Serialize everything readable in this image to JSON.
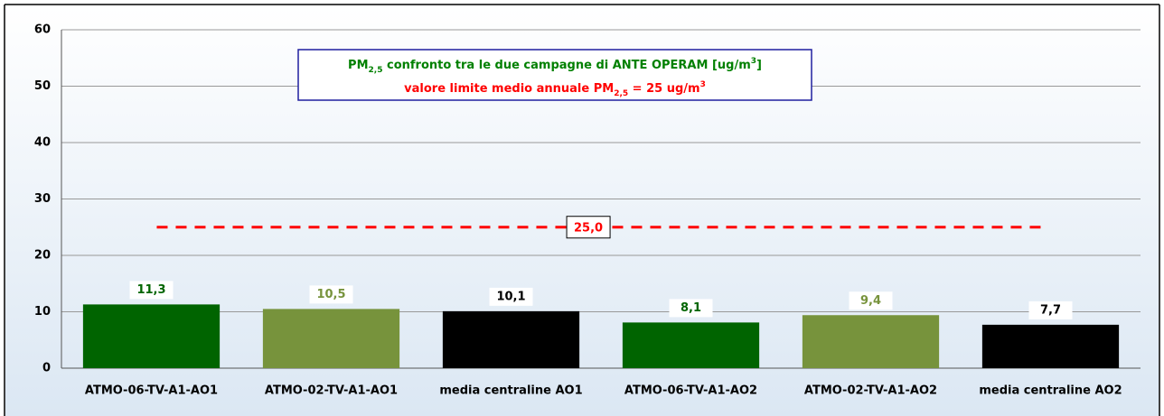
{
  "chart_data": {
    "type": "bar",
    "title": [
      {
        "text": "PM"
      },
      {
        "text": "2,5",
        "style": "sub"
      },
      {
        "text": " confronto tra le due campagne di ANTE OPERAM [ug/m"
      },
      {
        "text": "3",
        "style": "sup"
      },
      {
        "text": "]"
      }
    ],
    "title_color": "#008000",
    "subtitle": [
      {
        "text": "valore limite medio annuale PM"
      },
      {
        "text": "2,5",
        "style": "sub"
      },
      {
        "text": " = 25 ug/m"
      },
      {
        "text": "3",
        "style": "sup"
      }
    ],
    "subtitle_color": "#ff0000",
    "categories": [
      "ATMO-06-TV-A1-AO1",
      "ATMO-02-TV-A1-AO1",
      "media centraline AO1",
      "ATMO-06-TV-A1-AO2",
      "ATMO-02-TV-A1-AO2",
      "media centraline AO2"
    ],
    "values": [
      11.3,
      10.5,
      10.1,
      8.1,
      9.4,
      7.7
    ],
    "value_labels": [
      "11,3",
      "10,5",
      "10,1",
      "8,1",
      "9,4",
      "7,7"
    ],
    "colors": [
      "#006400",
      "#77933c",
      "#000000",
      "#006400",
      "#77933c",
      "#000000"
    ],
    "limit": {
      "value": 25,
      "label": "25,0",
      "color": "#ff0000"
    },
    "ylim": [
      0,
      60
    ],
    "yticks": [
      0,
      10,
      20,
      30,
      40,
      50,
      60
    ],
    "grid": true
  }
}
